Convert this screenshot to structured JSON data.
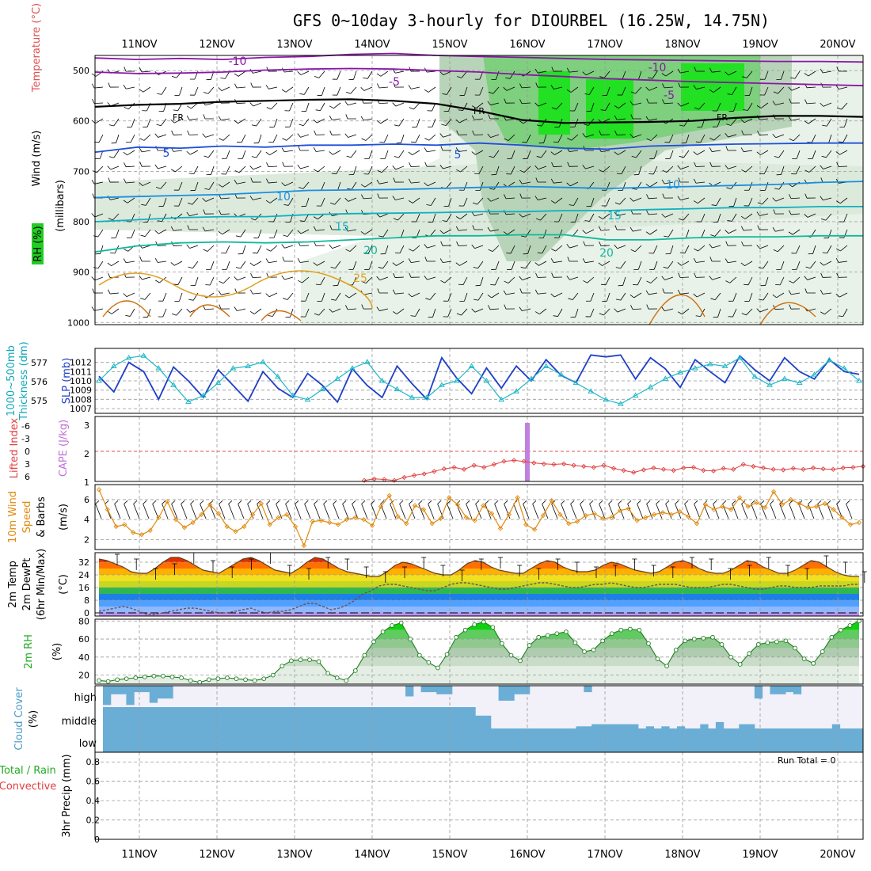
{
  "title": "GFS 0~10day 3-hourly for DIOURBEL (16.25W, 14.75N)",
  "dates": [
    "11NOV",
    "12NOV",
    "13NOV",
    "14NOV",
    "15NOV",
    "16NOV",
    "17NOV",
    "18NOV",
    "19NOV",
    "20NOV"
  ],
  "run_total": "Run Total = 0",
  "colors": {
    "axis": "#000000",
    "grid": "#999999",
    "rh_fill": "#2ecc40",
    "temp_line": "#1f4fd8",
    "wind": "#000000"
  },
  "chart_data": [
    {
      "id": "upper",
      "type": "contour",
      "ylabel_parts": [
        "Wind (m/s)",
        "Temperature (°C)",
        "RH (%)",
        "(millibars)"
      ],
      "y_ticks": [
        "500",
        "600",
        "700",
        "800",
        "900",
        "1000"
      ],
      "ylim": [
        470,
        1020
      ],
      "isotherm_labels": [
        "-10",
        "-10",
        "-5",
        "-5",
        "5",
        "5",
        "10",
        "10",
        "15",
        "15",
        "20",
        "20",
        "25",
        "FR",
        "FR",
        "FR"
      ],
      "isotherms": [
        {
          "label": "-10",
          "color": "#8a16a8",
          "p": [
            475,
            478,
            476,
            478,
            474,
            472,
            468,
            466,
            470,
            472,
            474,
            476,
            478,
            479,
            480,
            481,
            482,
            482,
            483
          ]
        },
        {
          "label": "-5",
          "color": "#8a16a8",
          "p": [
            503,
            506,
            505,
            503,
            499,
            497,
            496,
            497,
            500,
            503,
            508,
            512,
            516,
            519,
            522,
            524,
            526,
            528,
            530
          ]
        },
        {
          "label": "FR",
          "color": "#000000",
          "p": [
            572,
            568,
            566,
            562,
            560,
            558,
            557,
            560,
            566,
            580,
            598,
            604,
            603,
            602,
            600,
            594,
            590,
            590,
            592
          ]
        },
        {
          "label": "5",
          "color": "#1f4fd8",
          "p": [
            662,
            652,
            654,
            650,
            652,
            648,
            648,
            646,
            648,
            644,
            648,
            654,
            656,
            650,
            648,
            646,
            645,
            644,
            644
          ]
        },
        {
          "label": "10",
          "color": "#1a8fe0",
          "p": [
            752,
            750,
            748,
            746,
            742,
            738,
            737,
            736,
            734,
            732,
            730,
            732,
            734,
            732,
            730,
            728,
            726,
            722,
            720
          ]
        },
        {
          "label": "15",
          "color": "#10b0c0",
          "p": [
            800,
            796,
            792,
            790,
            790,
            786,
            784,
            783,
            782,
            780,
            780,
            778,
            778,
            776,
            774,
            772,
            772,
            770,
            770
          ]
        },
        {
          "label": "20",
          "color": "#10b89a",
          "p": [
            860,
            848,
            842,
            840,
            842,
            840,
            836,
            832,
            828,
            828,
            826,
            826,
            836,
            836,
            832,
            830,
            830,
            828,
            828
          ]
        }
      ]
    },
    {
      "id": "slp",
      "type": "line",
      "ylabel_parts": [
        "1000~500mb",
        "Thickness (dm)",
        "SLP (mb)"
      ],
      "ylim": [
        1007,
        1013
      ],
      "y_ticks_left": [
        "577",
        "576",
        "575"
      ],
      "y_ticks_right": [
        "1012",
        "1011",
        "1010",
        "1009",
        "1008",
        "1007"
      ],
      "series": [
        {
          "name": "SLP",
          "color": "#1f3fc8",
          "values": [
            1010.5,
            1008.8,
            1012,
            1011,
            1008,
            1011.5,
            1010,
            1008.2,
            1011.2,
            1009.5,
            1007.8,
            1011,
            1009.2,
            1008.2,
            1010.8,
            1009.5,
            1007.7,
            1011.3,
            1009.5,
            1008.2,
            1011.6,
            1009.7,
            1008.0,
            1012.5,
            1010.3,
            1008.6,
            1011.4,
            1009.2,
            1011.6,
            1010.0,
            1012.3,
            1010.6,
            1009.8,
            1012.8,
            1012.6,
            1012.8,
            1010.2,
            1012.5,
            1011.3,
            1009.3,
            1012.3,
            1011.0,
            1009.8,
            1012.7,
            1011.2,
            1010.0,
            1012.5,
            1011.0,
            1010.2,
            1012.3,
            1011.0,
            1010.7
          ]
        },
        {
          "name": "Thickness",
          "color": "#20b8c8",
          "values": [
            576.2,
            576.9,
            577.3,
            577.4,
            576.8,
            576.0,
            575.2,
            575.5,
            576.1,
            576.8,
            576.9,
            577.1,
            576.4,
            575.5,
            575.3,
            575.8,
            576.3,
            576.8,
            577.1,
            576.2,
            575.8,
            575.4,
            575.4,
            576.0,
            576.2,
            576.9,
            576.2,
            575.3,
            575.7,
            576.3,
            576.9,
            576.5,
            576.1,
            575.7,
            575.3,
            575.1,
            575.5,
            575.9,
            576.3,
            576.6,
            576.8,
            577.0,
            576.9,
            577.3,
            576.4,
            576.0,
            576.3,
            576.1,
            576.5,
            577.2,
            576.8,
            576.2
          ]
        }
      ]
    },
    {
      "id": "cape",
      "type": "bar_line",
      "ylabel_parts": [
        "Lifted Index",
        "CAPE (J/kg)"
      ],
      "y_ticks_left": [
        "-6",
        "-3",
        "0",
        "3",
        "6"
      ],
      "y_ticks_right": [
        "3",
        "2",
        "1"
      ],
      "cape_bar": {
        "index": 5.0,
        "value": 3
      },
      "lifted_index": [
        null,
        null,
        null,
        null,
        null,
        null,
        null,
        null,
        null,
        null,
        null,
        null,
        null,
        null,
        null,
        null,
        null,
        null,
        null,
        null,
        null,
        null,
        null,
        null,
        null,
        null,
        null,
        5.8,
        5.5,
        5.6,
        5.8,
        5.2,
        4.8,
        4.5,
        4.0,
        3.5,
        3.2,
        3.6,
        2.8,
        3.2,
        2.6,
        2.0,
        1.8,
        2.0,
        2.3,
        2.5,
        2.6,
        2.5,
        2.8,
        3.0,
        3.2,
        2.8,
        3.4,
        3.8,
        4.2,
        3.7,
        3.3,
        3.6,
        3.8,
        3.3,
        3.2,
        3.8,
        3.9,
        3.4,
        3.6,
        2.6,
        3.0,
        3.3,
        3.6,
        3.7,
        3.4,
        3.6,
        3.3,
        3.5,
        3.6,
        3.3,
        3.2,
        3.0
      ]
    },
    {
      "id": "wind10",
      "type": "line",
      "ylabel_parts": [
        "10m Wind",
        "Speed",
        "& Barbs",
        "(m/s)"
      ],
      "y_ticks": [
        "6",
        "4",
        "2"
      ],
      "ylim": [
        1,
        7.5
      ],
      "series": [
        {
          "name": "Speed",
          "color": "#e08a10",
          "values": [
            7.0,
            5.0,
            3.3,
            3.5,
            2.7,
            2.5,
            2.9,
            4.2,
            5.8,
            4.0,
            3.2,
            3.7,
            4.5,
            5.5,
            4.6,
            3.3,
            2.8,
            3.3,
            4.5,
            5.6,
            3.5,
            4.2,
            4.5,
            3.3,
            1.4,
            3.8,
            3.9,
            3.7,
            3.5,
            4.0,
            4.2,
            4.0,
            3.4,
            5.3,
            6.4,
            4.3,
            3.6,
            5.4,
            5.0,
            3.6,
            4.1,
            6.2,
            5.5,
            4.2,
            3.9,
            5.4,
            4.6,
            3.1,
            4.5,
            6.2,
            3.5,
            3.0,
            4.4,
            5.9,
            4.5,
            3.6,
            3.8,
            4.4,
            4.6,
            4.1,
            4.2,
            4.9,
            5.1,
            3.9,
            4.2,
            4.5,
            4.7,
            4.5,
            4.8,
            4.3,
            3.6,
            5.5,
            5.0,
            5.3,
            5.0,
            6.2,
            5.3,
            5.7,
            5.2,
            6.8,
            5.5,
            6.0,
            5.6,
            5.2,
            5.3,
            5.6,
            5.0,
            4.2,
            3.5,
            3.7
          ]
        }
      ]
    },
    {
      "id": "temp2m",
      "type": "area",
      "ylabel_parts": [
        "2m Temp",
        "2m DewPt",
        "(6hr Min/Max)",
        "(°C)"
      ],
      "y_ticks": [
        "32",
        "24",
        "16",
        "8",
        "0"
      ],
      "ylim": [
        -2,
        38
      ],
      "temp": [
        34,
        33,
        31,
        29,
        26,
        25,
        25,
        28,
        32,
        35,
        35,
        33,
        30,
        27,
        26,
        25,
        28,
        31,
        34,
        35,
        33,
        30,
        27,
        26,
        25,
        28,
        32,
        35,
        34,
        31,
        28,
        26,
        25,
        24,
        23,
        23,
        26,
        30,
        32,
        31,
        29,
        27,
        25,
        24,
        24,
        27,
        31,
        33,
        32,
        29,
        27,
        26,
        25,
        25,
        28,
        31,
        33,
        32,
        29,
        27,
        26,
        26,
        27,
        30,
        32,
        31,
        29,
        27,
        26,
        25,
        26,
        29,
        32,
        33,
        31,
        28,
        26,
        25,
        25,
        27,
        30,
        33,
        32,
        29,
        27,
        25,
        25,
        27,
        30,
        33,
        32,
        29,
        26,
        24,
        23,
        23
      ],
      "dewpt": [
        1,
        2,
        3,
        4,
        3,
        1,
        -1,
        -1,
        0,
        1,
        2,
        3,
        3,
        2,
        1,
        0,
        0,
        1,
        2,
        3,
        1,
        0,
        1,
        1,
        2,
        4,
        6,
        6,
        4,
        2,
        3,
        5,
        8,
        12,
        14,
        17,
        18,
        18,
        17,
        16,
        15,
        14,
        14,
        16,
        18,
        19,
        19,
        18,
        17,
        16,
        15,
        15,
        16,
        17,
        18,
        19,
        19,
        18,
        17,
        16,
        16,
        17,
        18,
        18,
        19,
        18,
        17,
        16,
        16,
        17,
        18,
        18,
        18,
        17,
        16,
        16,
        16,
        17,
        18,
        18,
        17,
        16,
        15,
        15,
        16,
        17,
        17,
        16,
        16,
        16,
        17,
        17,
        17,
        17,
        18,
        18
      ]
    },
    {
      "id": "rh2m",
      "type": "area",
      "ylabel_parts": [
        "2m RH",
        "(%)"
      ],
      "y_ticks": [
        "80",
        "60",
        "40",
        "20"
      ],
      "ylim": [
        10,
        82
      ],
      "values": [
        14,
        13,
        15,
        16,
        17,
        18,
        19,
        19,
        18,
        17,
        14,
        12,
        15,
        16,
        17,
        16,
        15,
        14,
        16,
        20,
        30,
        36,
        37,
        37,
        35,
        22,
        17,
        14,
        25,
        42,
        57,
        68,
        75,
        78,
        60,
        42,
        34,
        28,
        43,
        62,
        70,
        76,
        79,
        73,
        55,
        42,
        36,
        53,
        62,
        64,
        66,
        68,
        56,
        46,
        48,
        58,
        66,
        70,
        71,
        70,
        55,
        38,
        30,
        48,
        58,
        60,
        61,
        62,
        54,
        40,
        32,
        44,
        54,
        56,
        57,
        58,
        50,
        38,
        33,
        46,
        62,
        70,
        75,
        80
      ]
    },
    {
      "id": "cloud",
      "type": "area",
      "ylabel_parts": [
        "Cloud Cover",
        "(%)"
      ],
      "levels": [
        "high",
        "middle",
        "low"
      ],
      "high": [
        90,
        40,
        40,
        90,
        30,
        30,
        80,
        60,
        60,
        0,
        0,
        0,
        0,
        0,
        0,
        0,
        0,
        0,
        0,
        0,
        0,
        0,
        0,
        0,
        0,
        0,
        0,
        0,
        0,
        0,
        0,
        0,
        0,
        0,
        0,
        0,
        0,
        0,
        0,
        50,
        0,
        30,
        30,
        40,
        40,
        0,
        0,
        0,
        0,
        0,
        0,
        70,
        70,
        40,
        40,
        0,
        0,
        0,
        0,
        0,
        0,
        0,
        30,
        0,
        0,
        0,
        0,
        0,
        0,
        0,
        0,
        0,
        0,
        0,
        0,
        0,
        0,
        0,
        0,
        0,
        0,
        0,
        0,
        0,
        60,
        0,
        40,
        40,
        30,
        40,
        0,
        0,
        0,
        0,
        0,
        0,
        0,
        0
      ],
      "middle": [
        100,
        100,
        100,
        100,
        100,
        100,
        100,
        100,
        100,
        100,
        100,
        100,
        100,
        100,
        100,
        100,
        100,
        100,
        100,
        100,
        100,
        100,
        100,
        100,
        100,
        100,
        100,
        100,
        100,
        100,
        100,
        100,
        100,
        100,
        100,
        100,
        100,
        100,
        100,
        100,
        100,
        100,
        100,
        100,
        100,
        100,
        100,
        100,
        60,
        60,
        0,
        0,
        0,
        0,
        0,
        0,
        0,
        0,
        0,
        0,
        0,
        10,
        10,
        20,
        20,
        20,
        20,
        20,
        20,
        0,
        10,
        0,
        10,
        0,
        10,
        0,
        0,
        20,
        0,
        30,
        0,
        0,
        20,
        20,
        0,
        0,
        0,
        0,
        0,
        0,
        0,
        0,
        0,
        0,
        20,
        0,
        0,
        0,
        0
      ]
    },
    {
      "id": "precip",
      "type": "bar",
      "ylabel_parts": [
        "Total / Rain",
        "Convective",
        "3hr Precip (mm)"
      ],
      "y_ticks": [
        "0.8",
        "0.6",
        "0.4",
        "0.2",
        "0"
      ],
      "ylim": [
        0,
        0.9
      ],
      "values": []
    }
  ]
}
